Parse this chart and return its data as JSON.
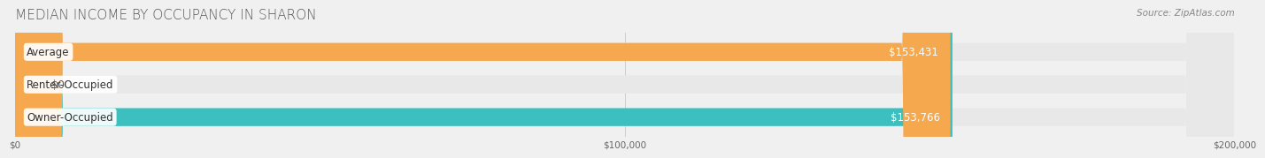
{
  "title": "MEDIAN INCOME BY OCCUPANCY IN SHARON",
  "source": "Source: ZipAtlas.com",
  "categories": [
    "Owner-Occupied",
    "Renter-Occupied",
    "Average"
  ],
  "values": [
    153766,
    0,
    153431
  ],
  "bar_colors": [
    "#3bbfbf",
    "#c9a8d4",
    "#f5a84e"
  ],
  "bar_labels": [
    "$153,766",
    "$0",
    "$153,431"
  ],
  "xlim": [
    0,
    200000
  ],
  "xticks": [
    0,
    100000,
    200000
  ],
  "xtick_labels": [
    "$0",
    "$100,000",
    "$200,000"
  ],
  "background_color": "#f0f0f0",
  "bar_bg_color": "#e8e8e8",
  "title_fontsize": 11,
  "label_fontsize": 8.5,
  "bar_height": 0.55,
  "figsize": [
    14.06,
    1.97
  ]
}
